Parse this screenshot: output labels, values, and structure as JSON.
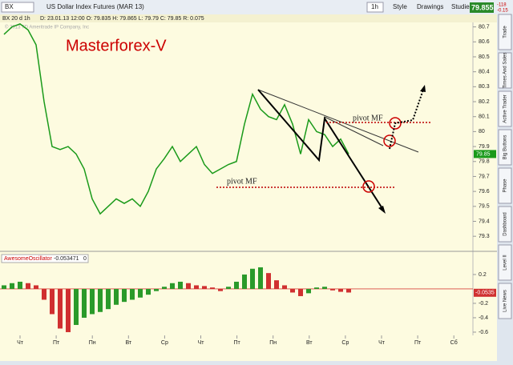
{
  "ui": {
    "symbol": "BX",
    "instrument": "US Dollar Index Futures (MAR 13)",
    "period": "1h",
    "style": "Style",
    "drawings": "Drawings",
    "studies": "Studies",
    "last_price": "79.855",
    "change": "-118",
    "change_pct": "-0.15",
    "header": "BX 20 d 1h",
    "info": "D: 23.01.13 12:00  O: 79.835  H: 79.865  L: 79.79  C: 79.85  R: 0.075",
    "copyright": "© 2013 TD Ameritrade IP Company, Inc",
    "side_tabs": [
      "Trade",
      "Times And Sales",
      "Active Trader",
      "Big Buttons",
      "Phase",
      "Dashboard",
      "Level II",
      "Live News"
    ]
  },
  "chart_data": [
    {
      "type": "line",
      "color": "#1a9a1a",
      "values": [
        80.65,
        80.7,
        80.72,
        80.68,
        80.58,
        80.2,
        79.9,
        79.88,
        79.9,
        79.85,
        79.75,
        79.55,
        79.45,
        79.5,
        79.55,
        79.52,
        79.55,
        79.5,
        79.6,
        79.75,
        79.82,
        79.9,
        79.8,
        79.85,
        79.9,
        79.78,
        79.72,
        79.75,
        79.78,
        79.8,
        80.05,
        80.25,
        80.15,
        80.1,
        80.08,
        80.18,
        80.05,
        79.85,
        80.08,
        80.0,
        79.98,
        79.9,
        79.95,
        79.85
      ],
      "last_value": 79.85,
      "last_value_label": "79.85",
      "ylim": [
        79.21,
        80.73
      ],
      "yticks": [
        79.3,
        79.4,
        79.5,
        79.6,
        79.7,
        79.8,
        79.9,
        {
          "value": 80.0,
          "label": "80"
        },
        80.1,
        80.2,
        80.3,
        80.4,
        80.5,
        80.6,
        80.7
      ],
      "annotations": [
        "Masterforex-V",
        "pivot MF",
        "pivot MF"
      ],
      "time_labels": [
        "Чт",
        "Пт",
        "Пн",
        "Вт",
        "Ср",
        "Чт",
        "Пт",
        "Пн",
        "Вт",
        "Ср",
        "Чт",
        "Пт",
        "Сб"
      ]
    },
    {
      "type": "histogram",
      "title": "AwesomeOscillator",
      "title_value": "-0.053471",
      "title_zero": "0",
      "up_color": "#2a9a2a",
      "down_color": "#d03030",
      "values": [
        0.05,
        0.08,
        0.1,
        0.08,
        0.05,
        -0.15,
        -0.35,
        -0.55,
        -0.6,
        -0.5,
        -0.4,
        -0.35,
        -0.32,
        -0.28,
        -0.22,
        -0.18,
        -0.15,
        -0.12,
        -0.08,
        -0.03,
        0.03,
        0.08,
        0.1,
        0.08,
        0.05,
        0.04,
        0.02,
        -0.03,
        0.03,
        0.1,
        0.2,
        0.28,
        0.3,
        0.22,
        0.12,
        0.05,
        -0.05,
        -0.1,
        -0.06,
        0.02,
        0.03,
        -0.02,
        -0.04,
        -0.05
      ],
      "last_value": -0.0535,
      "last_value_label": "-0.0535",
      "ylim": [
        -0.656,
        0.344
      ],
      "yticks": [
        0.2,
        -0.2,
        -0.4,
        -0.6
      ]
    }
  ]
}
